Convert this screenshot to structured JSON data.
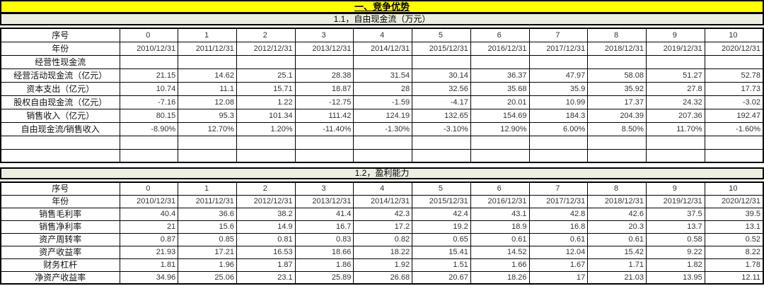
{
  "title": "一、竞争优势",
  "colors": {
    "title_bg": "#FFFF00",
    "section_heading_bg": "#ECEEE1",
    "grid_border": "#000000",
    "cell_bg": "#FFFFFF"
  },
  "sections": [
    {
      "heading": "1.1，自由现金流（万元）",
      "index_label": "序号",
      "columns": [
        "0",
        "1",
        "2",
        "3",
        "4",
        "5",
        "6",
        "7",
        "8",
        "9",
        "10"
      ],
      "year_label": "年份",
      "years": [
        "2010/12/31",
        "2011/12/31",
        "2012/12/31",
        "2013/12/31",
        "2014/12/31",
        "2015/12/31",
        "2016/12/31",
        "2017/12/31",
        "2018/12/31",
        "2019/12/31",
        "2020/12/31"
      ],
      "rows": [
        {
          "label": "经营性现金流",
          "values": [
            "",
            "",
            "",
            "",
            "",
            "",
            "",
            "",
            "",
            "",
            ""
          ]
        },
        {
          "label": "经营活动现金流（亿元）",
          "values": [
            "21.15",
            "14.62",
            "25.1",
            "28.38",
            "31.54",
            "30.14",
            "36.37",
            "47.97",
            "58.08",
            "51.27",
            "52.78"
          ]
        },
        {
          "label": "资本支出（亿元）",
          "values": [
            "10.74",
            "11.1",
            "15.71",
            "18.87",
            "28",
            "32.56",
            "35.68",
            "35.9",
            "35.92",
            "27.8",
            "17.73"
          ]
        },
        {
          "label": "股权自由现金流（亿元）",
          "values": [
            "-7.16",
            "12.08",
            "1.22",
            "-12.75",
            "-1.59",
            "-4.17",
            "20.01",
            "10.99",
            "17.37",
            "24.32",
            "-3.02"
          ]
        },
        {
          "label": "销售收入（亿元）",
          "values": [
            "80.15",
            "95.3",
            "101.34",
            "111.42",
            "124.19",
            "132.65",
            "154.69",
            "184.3",
            "204.39",
            "207.36",
            "192.47"
          ]
        },
        {
          "label": "自由现金流/销售收入",
          "values": [
            "-8.90%",
            "12.70%",
            "1.20%",
            "-11.40%",
            "-1.30%",
            "-3.10%",
            "12.90%",
            "6.00%",
            "8.50%",
            "11.70%",
            "-1.60%"
          ]
        },
        {
          "label": "",
          "values": [
            "",
            "",
            "",
            "",
            "",
            "",
            "",
            "",
            "",
            "",
            ""
          ]
        },
        {
          "label": "",
          "values": [
            "",
            "",
            "",
            "",
            "",
            "",
            "",
            "",
            "",
            "",
            ""
          ]
        }
      ]
    },
    {
      "heading": "1.2，盈利能力",
      "index_label": "序号",
      "columns": [
        "0",
        "1",
        "2",
        "3",
        "4",
        "5",
        "6",
        "7",
        "8",
        "9",
        "10"
      ],
      "year_label": "年份",
      "years": [
        "2010/12/31",
        "2011/12/31",
        "2012/12/31",
        "2013/12/31",
        "2014/12/31",
        "2015/12/31",
        "2016/12/31",
        "2017/12/31",
        "2018/12/31",
        "2019/12/31",
        "2020/12/31"
      ],
      "rows": [
        {
          "label": "销售毛利率",
          "values": [
            "40.4",
            "36.6",
            "38.2",
            "41.4",
            "42.3",
            "42.4",
            "43.1",
            "42.8",
            "42.6",
            "37.5",
            "39.5"
          ]
        },
        {
          "label": "销售净利率",
          "values": [
            "21",
            "15.6",
            "14.9",
            "16.7",
            "17.2",
            "19.2",
            "18.9",
            "16.8",
            "20.3",
            "13.7",
            "13.1"
          ]
        },
        {
          "label": "资产周转率",
          "values": [
            "0.87",
            "0.85",
            "0.81",
            "0.83",
            "0.82",
            "0.65",
            "0.61",
            "0.61",
            "0.61",
            "0.58",
            "0.52"
          ]
        },
        {
          "label": "资产收益率",
          "values": [
            "21.93",
            "17.21",
            "16.53",
            "18.66",
            "18.22",
            "15.41",
            "14.52",
            "12.04",
            "15.42",
            "9.22",
            "8.22"
          ]
        },
        {
          "label": "财务杠杆",
          "values": [
            "1.81",
            "1.96",
            "1.87",
            "1.86",
            "1.92",
            "1.51",
            "1.66",
            "1.67",
            "1.71",
            "1.82",
            "1.78"
          ]
        },
        {
          "label": "净资产收益率",
          "values": [
            "34.96",
            "25.06",
            "23.1",
            "25.89",
            "26.68",
            "20.67",
            "18.26",
            "17",
            "21.03",
            "13.95",
            "12.11"
          ]
        }
      ]
    }
  ]
}
